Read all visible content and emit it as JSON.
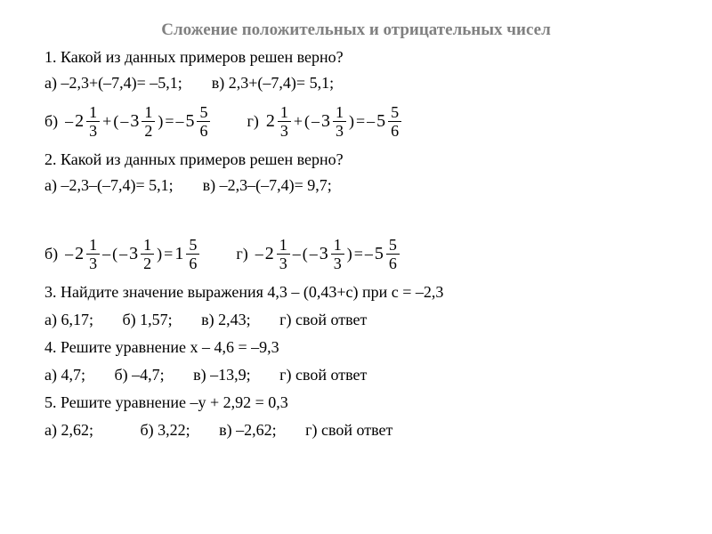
{
  "title": "Сложение положительных и отрицательных чисел",
  "q1": {
    "text": "1. Какой из данных примеров решен верно?",
    "a": "а) –2,3+(–7,4)= –5,1;",
    "v": "в) 2,3+(–7,4)= 5,1;",
    "b_label": "б)",
    "b_expr": {
      "w1": "2",
      "n1": "1",
      "d1": "3",
      "w2": "3",
      "n2": "1",
      "d2": "2",
      "w3": "5",
      "n3": "5",
      "d3": "6"
    },
    "g_label": "г)",
    "g_expr": {
      "w1": "2",
      "n1": "1",
      "d1": "3",
      "w2": "3",
      "n2": "1",
      "d2": "3",
      "w3": "5",
      "n3": "5",
      "d3": "6"
    }
  },
  "q2": {
    "text": "2. Какой из данных примеров решен верно?",
    "a": "а) –2,3–(–7,4)= 5,1;",
    "v": "в) –2,3–(–7,4)= 9,7;",
    "b_label": "б)",
    "b_expr": {
      "w1": "2",
      "n1": "1",
      "d1": "3",
      "w2": "3",
      "n2": "1",
      "d2": "2",
      "w3": "1",
      "n3": "5",
      "d3": "6"
    },
    "g_label": "г)",
    "g_expr": {
      "w1": "2",
      "n1": "1",
      "d1": "3",
      "w2": "3",
      "n2": "1",
      "d2": "3",
      "w3": "5",
      "n3": "5",
      "d3": "6"
    }
  },
  "q3": {
    "text": "3. Найдите значение выражения 4,3 – (0,43+с)   при    с = –2,3",
    "a": "а) 6,17;",
    "b": "б) 1,57;",
    "v": "в) 2,43;",
    "g": "г) свой ответ"
  },
  "q4": {
    "text": "4. Решите уравнение х – 4,6 =  –9,3",
    "a": "а) 4,7;",
    "b": "б) –4,7;",
    "v": "в) –13,9;",
    "g": "г) свой ответ"
  },
  "q5": {
    "text": "5. Решите уравнение –у + 2,92 = 0,3",
    "a": "а) 2,62;",
    "b": "б) 3,22;",
    "v": "в) –2,62;",
    "g": "г) свой ответ"
  },
  "sym": {
    "minus": "–",
    "plus": "+",
    "eq": "=",
    "lp": "(",
    "rp": ")"
  }
}
